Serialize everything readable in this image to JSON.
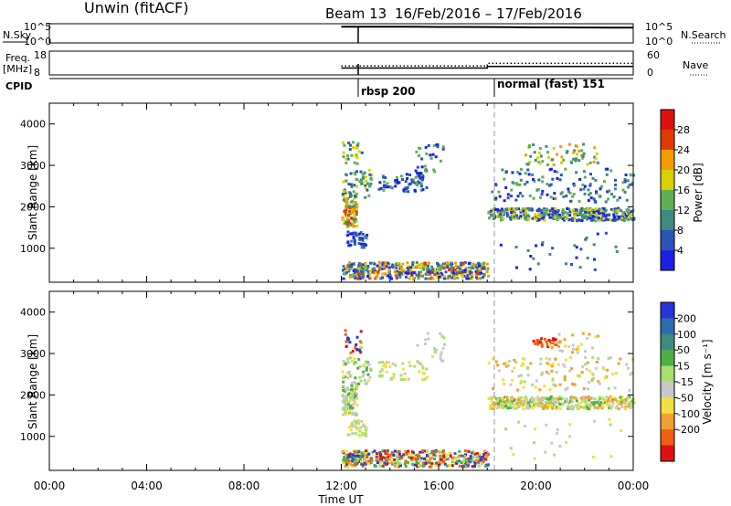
{
  "header": {
    "station": "Unwin (fitACF)",
    "beam": "Beam 13",
    "dates": "16/Feb/2016 – 17/Feb/2016"
  },
  "chart_data": [
    {
      "type": "line",
      "panel": "nsky-nsearch",
      "left_label": "N.Sky",
      "right_label": "N.Search",
      "left_ticks": [
        "10^5",
        "10^0"
      ],
      "right_ticks": [
        "10^5",
        "10^0"
      ],
      "x": [
        12.0,
        12.5,
        13,
        14,
        15,
        16,
        17,
        18,
        19,
        20,
        21,
        22,
        23,
        24
      ],
      "series": [
        {
          "values": [
            4.9,
            4.9,
            4.95,
            4.9,
            4.9,
            4.85,
            4.85,
            4.8,
            4.75,
            4.7,
            4.7,
            4.65,
            4.6,
            4.6
          ]
        }
      ]
    },
    {
      "type": "line",
      "panel": "freq-nave",
      "left_label": "Freq.",
      "left_unit": "[MHz]",
      "right_label": "Nave",
      "left_ticks": [
        "18",
        "8"
      ],
      "right_ticks": [
        "60",
        "0"
      ],
      "freq_x": [
        12,
        18,
        18,
        24
      ],
      "freq_mhz": [
        10.5,
        10.5,
        11.3,
        11.3
      ],
      "nave_x": [
        12,
        18,
        18,
        24
      ],
      "nave_values": [
        21,
        21,
        29,
        29
      ]
    },
    {
      "type": "table",
      "panel": "cpid",
      "label": "CPID",
      "segments": [
        {
          "start": 12,
          "label": "rbsp 200"
        },
        {
          "start": 18,
          "label": "normal (fast) 151"
        }
      ]
    },
    {
      "type": "heatmap",
      "panel": "power",
      "ylabel": "Slant Range [km]",
      "yticks": [
        "1000",
        "2000",
        "3000",
        "4000"
      ],
      "ylim": [
        180,
        4500
      ],
      "xlim": [
        0,
        24
      ],
      "colorbar_label": "Power [dB]",
      "colorbar_ticks": [
        "4",
        "8",
        "12",
        "16",
        "20",
        "24",
        "28"
      ],
      "colorbar_colors": [
        "#1b20e8",
        "#2a55b8",
        "#3f8a80",
        "#5fae58",
        "#d8d000",
        "#f59a00",
        "#e03a00",
        "#e01010"
      ],
      "clusters": [
        {
          "t": [
            12.0,
            12.6
          ],
          "r": [
            1500,
            2200
          ],
          "n": 90,
          "c": [
            2,
            3,
            4,
            5,
            6
          ]
        },
        {
          "t": [
            12.0,
            13.2
          ],
          "r": [
            2200,
            2900
          ],
          "n": 60,
          "c": [
            1,
            2,
            3,
            4
          ]
        },
        {
          "t": [
            12.2,
            13.0
          ],
          "r": [
            1000,
            1400
          ],
          "n": 40,
          "c": [
            0,
            1,
            2
          ]
        },
        {
          "t": [
            12.0,
            18.0
          ],
          "r": [
            250,
            650
          ],
          "n": 420,
          "c": [
            0,
            1,
            2,
            3,
            4,
            5,
            6
          ]
        },
        {
          "t": [
            13.5,
            15.5
          ],
          "r": [
            2350,
            2800
          ],
          "n": 70,
          "c": [
            0,
            1,
            3
          ]
        },
        {
          "t": [
            12.0,
            12.8
          ],
          "r": [
            3000,
            3550
          ],
          "n": 25,
          "c": [
            1,
            3,
            4
          ]
        },
        {
          "t": [
            15.0,
            16.2
          ],
          "r": [
            2800,
            3500
          ],
          "n": 30,
          "c": [
            0,
            1,
            3
          ]
        },
        {
          "t": [
            18.0,
            24.0
          ],
          "r": [
            1650,
            1950
          ],
          "n": 380,
          "c": [
            0,
            1,
            2,
            3,
            4
          ]
        },
        {
          "t": [
            18.0,
            24.0
          ],
          "r": [
            2100,
            2900
          ],
          "n": 140,
          "c": [
            0,
            1,
            2,
            3
          ]
        },
        {
          "t": [
            19.5,
            22.5
          ],
          "r": [
            3000,
            3500
          ],
          "n": 60,
          "c": [
            2,
            3,
            4,
            5
          ]
        },
        {
          "t": [
            18.5,
            23.5
          ],
          "r": [
            450,
            1400
          ],
          "n": 30,
          "c": [
            0,
            1,
            2
          ]
        }
      ]
    },
    {
      "type": "heatmap",
      "panel": "velocity",
      "ylabel": "Slant Range [km]",
      "yticks": [
        "1000",
        "2000",
        "3000",
        "4000"
      ],
      "ylim": [
        180,
        4500
      ],
      "xlim": [
        0,
        24
      ],
      "xticks": [
        "00:00",
        "04:00",
        "08:00",
        "12:00",
        "16:00",
        "20:00",
        "00:00"
      ],
      "xlabel": "Time UT",
      "colorbar_label": "Velocity [m s⁻¹]",
      "colorbar_ticks": [
        "200",
        "100",
        "50",
        "15",
        "-15",
        "-50",
        "-100",
        "-200"
      ],
      "colorbar_colors": [
        "#2535d8",
        "#2e6ab0",
        "#3f8a80",
        "#4fae48",
        "#a8e070",
        "#c8c8c8",
        "#f0e040",
        "#f0a030",
        "#f06010",
        "#e01010"
      ],
      "clusters": [
        {
          "t": [
            12.0,
            12.6
          ],
          "r": [
            1500,
            2200
          ],
          "n": 90,
          "c": [
            3,
            4,
            5,
            5,
            6
          ]
        },
        {
          "t": [
            12.0,
            13.2
          ],
          "r": [
            2200,
            2900
          ],
          "n": 60,
          "c": [
            3,
            4,
            5,
            6
          ]
        },
        {
          "t": [
            12.2,
            13.0
          ],
          "r": [
            1000,
            1400
          ],
          "n": 40,
          "c": [
            5,
            6,
            4
          ]
        },
        {
          "t": [
            12.0,
            18.0
          ],
          "r": [
            250,
            650
          ],
          "n": 420,
          "c": [
            0,
            1,
            3,
            4,
            6,
            7,
            8,
            9
          ]
        },
        {
          "t": [
            13.5,
            15.5
          ],
          "r": [
            2350,
            2800
          ],
          "n": 50,
          "c": [
            4,
            5,
            6
          ]
        },
        {
          "t": [
            12.0,
            12.8
          ],
          "r": [
            3000,
            3550
          ],
          "n": 25,
          "c": [
            0,
            4,
            8,
            9
          ]
        },
        {
          "t": [
            15.0,
            16.2
          ],
          "r": [
            2800,
            3500
          ],
          "n": 20,
          "c": [
            5,
            6,
            4
          ]
        },
        {
          "t": [
            18.0,
            24.0
          ],
          "r": [
            1650,
            1950
          ],
          "n": 380,
          "c": [
            3,
            4,
            6,
            7,
            5
          ]
        },
        {
          "t": [
            18.0,
            24.0
          ],
          "r": [
            2100,
            2900
          ],
          "n": 120,
          "c": [
            4,
            5,
            6,
            7
          ]
        },
        {
          "t": [
            19.8,
            20.8
          ],
          "r": [
            3150,
            3350
          ],
          "n": 30,
          "c": [
            8,
            9
          ]
        },
        {
          "t": [
            20.5,
            22.5
          ],
          "r": [
            3000,
            3500
          ],
          "n": 30,
          "c": [
            5,
            6,
            7
          ]
        },
        {
          "t": [
            18.5,
            23.5
          ],
          "r": [
            450,
            1400
          ],
          "n": 25,
          "c": [
            5,
            6,
            4
          ]
        }
      ]
    }
  ]
}
